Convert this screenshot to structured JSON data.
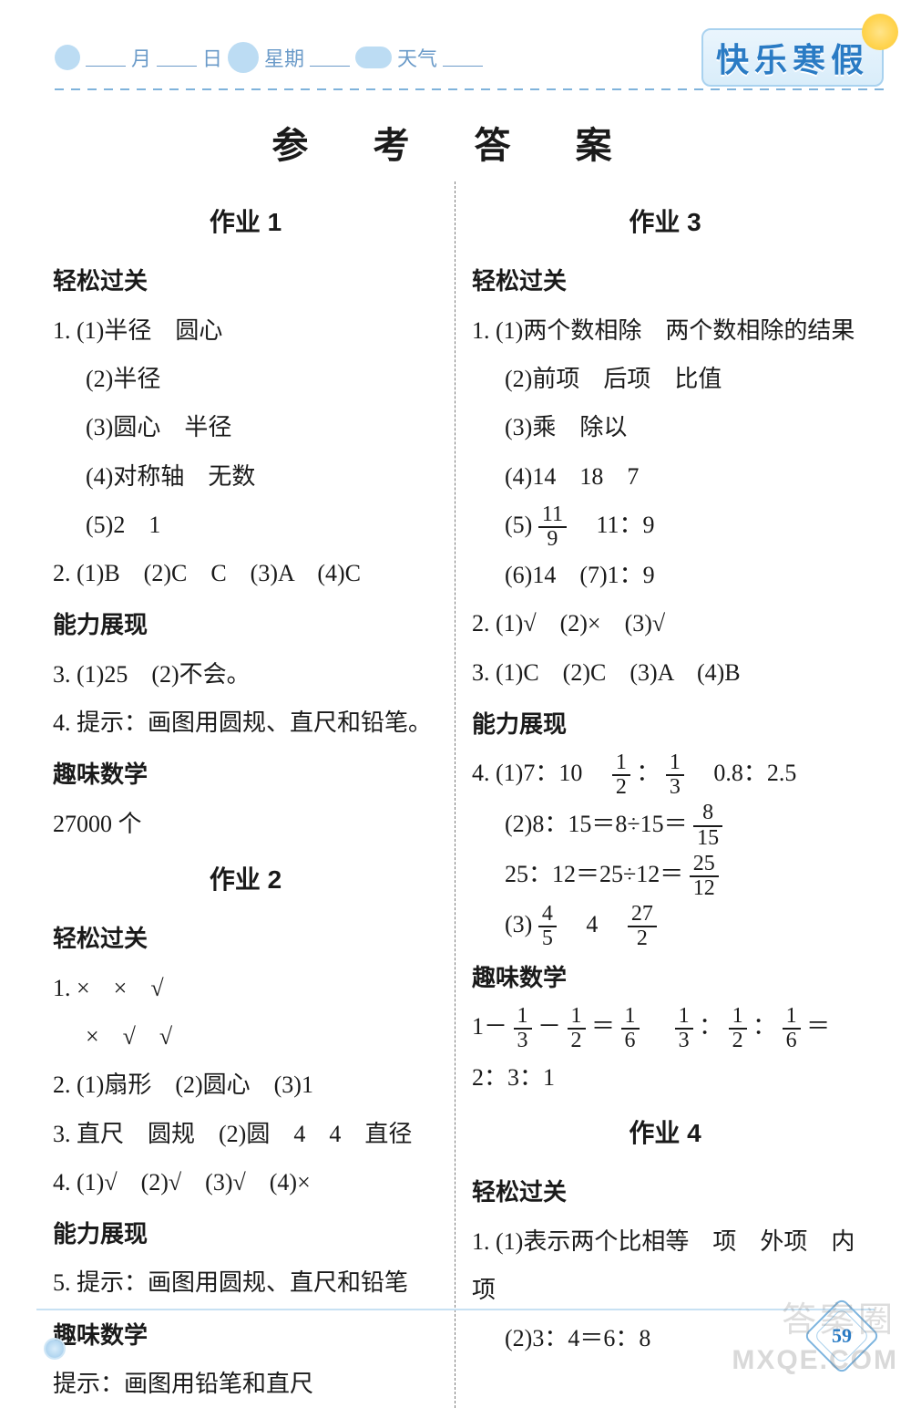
{
  "header": {
    "month_label": "月",
    "day_label": "日",
    "weekday_label": "星期",
    "weather_label": "天气",
    "banner": "快乐寒假"
  },
  "title": "参 考 答 案",
  "page_number": "59",
  "watermark_cn": "答案圈",
  "watermark_en": "MXQE.COM",
  "left": {
    "hw1": {
      "title": "作业 1",
      "s1": "轻松过关",
      "q1_1": "1. (1)半径　圆心",
      "q1_2": "(2)半径",
      "q1_3": "(3)圆心　半径",
      "q1_4": "(4)对称轴　无数",
      "q1_5": "(5)2　1",
      "q2": "2. (1)B　(2)C　C　(3)A　(4)C",
      "s2": "能力展现",
      "q3": "3. (1)25　(2)不会。",
      "q4": "4. 提示：画图用圆规、直尺和铅笔。",
      "s3": "趣味数学",
      "q5": "27000 个"
    },
    "hw2": {
      "title": "作业 2",
      "s1": "轻松过关",
      "q1a": "1. ×　×　√",
      "q1b": "×　√　√",
      "q2": "2. (1)扇形　(2)圆心　(3)1",
      "q3": "3. 直尺　圆规　(2)圆　4　4　直径",
      "q4": "4. (1)√　(2)√　(3)√　(4)×",
      "s2": "能力展现",
      "q5": "5. 提示：画图用圆规、直尺和铅笔",
      "s3": "趣味数学",
      "q6": "提示：画图用铅笔和直尺"
    }
  },
  "right": {
    "hw3": {
      "title": "作业 3",
      "s1": "轻松过关",
      "q1_1": "1. (1)两个数相除　两个数相除的结果",
      "q1_2": "(2)前项　后项　比值",
      "q1_3": "(3)乘　除以",
      "q1_4": "(4)14　18　7",
      "q1_5_pre": "(5)",
      "q1_5_frac_n": "11",
      "q1_5_frac_d": "9",
      "q1_5_post": "　11：9",
      "q1_6": "(6)14　(7)1：9",
      "q2": "2. (1)√　(2)×　(3)√",
      "q3": "3. (1)C　(2)C　(3)A　(4)B",
      "s2": "能力展现",
      "q4_1_pre": "4. (1)7：10　",
      "q4_1_f1n": "1",
      "q4_1_f1d": "2",
      "q4_1_mid": "：",
      "q4_1_f2n": "1",
      "q4_1_f2d": "3",
      "q4_1_post": "　0.8：2.5",
      "q4_2a_pre": "(2)8：15＝8÷15＝",
      "q4_2a_fn": "8",
      "q4_2a_fd": "15",
      "q4_2b_pre": "25：12＝25÷12＝",
      "q4_2b_fn": "25",
      "q4_2b_fd": "12",
      "q4_3_pre": "(3)",
      "q4_3_f1n": "4",
      "q4_3_f1d": "5",
      "q4_3_mid": "　4　",
      "q4_3_f2n": "27",
      "q4_3_f2d": "2",
      "s3": "趣味数学",
      "fun_pre": "1－",
      "fun_f1n": "1",
      "fun_f1d": "3",
      "fun_m1": "－",
      "fun_f2n": "1",
      "fun_f2d": "2",
      "fun_m2": "＝",
      "fun_f3n": "1",
      "fun_f3d": "6",
      "fun_sp": "　",
      "fun_f4n": "1",
      "fun_f4d": "3",
      "fun_m3": "：",
      "fun_f5n": "1",
      "fun_f5d": "2",
      "fun_m4": "：",
      "fun_f6n": "1",
      "fun_f6d": "6",
      "fun_post": "＝2：3：1"
    },
    "hw4": {
      "title": "作业 4",
      "s1": "轻松过关",
      "q1_1": "1. (1)表示两个比相等　项　外项　内项",
      "q1_2": "(2)3：4＝6：8"
    }
  }
}
